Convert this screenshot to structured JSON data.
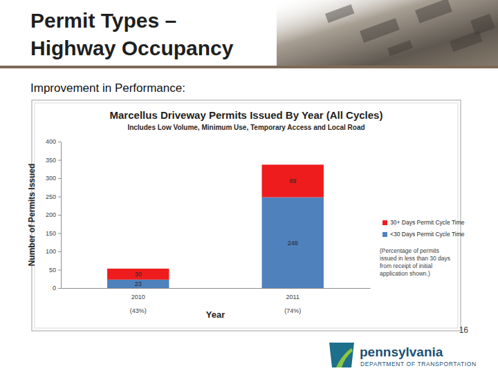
{
  "slide": {
    "title_lines": [
      "Permit Types –",
      "Highway Occupancy"
    ],
    "subtitle": "Improvement in Performance:",
    "page_number": "16",
    "logo_name": "pennsylvania",
    "logo_department": "DEPARTMENT OF TRANSPORTATION"
  },
  "chart_data": {
    "type": "bar",
    "title": "Marcellus Driveway Permits Issued By Year (All Cycles)",
    "subtitle": "Includes Low Volume, Minimum Use, Temporary Access and Local Road",
    "x_label": "Year",
    "y_label": "Number of Permits Issued",
    "categories": [
      "2010",
      "2011"
    ],
    "series": [
      {
        "name": "<30 Days Permit Cycle Time",
        "color": "#4f81bd",
        "values": [
          23,
          248
        ]
      },
      {
        "name": "30+ Days Permit Cycle Time",
        "color": "#ee1c1c",
        "values": [
          30,
          89
        ]
      }
    ],
    "stacked": true,
    "data_labels": true,
    "grid": false,
    "legend": "right",
    "ylim": [
      0,
      400
    ],
    "yticks": [
      0,
      50,
      100,
      150,
      200,
      250,
      300,
      350,
      400
    ],
    "annotations": [
      {
        "text": "(43%)",
        "category": 0
      },
      {
        "text": "(74%)",
        "category": 1
      },
      {
        "text": "(Percentage of permits issued in less than 30 days from receipt of initial application shown.)"
      }
    ]
  }
}
